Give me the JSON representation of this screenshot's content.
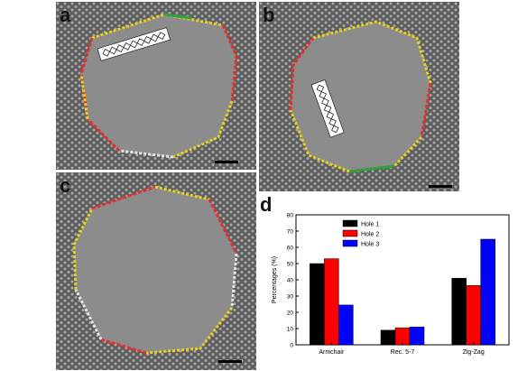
{
  "figure": {
    "panels": [
      {
        "label": "a",
        "description_icon": "armchair-edge-molecule-icon"
      },
      {
        "label": "b",
        "description_icon": "armchair-edge-molecule-icon"
      },
      {
        "label": "c"
      },
      {
        "label": "d"
      }
    ],
    "edge_colors": {
      "armchair": "#e8d020",
      "reconstructed": "#e03030",
      "zigzag": "#30a040",
      "other": "#e6e6e6"
    },
    "lattice_color": "#8a8a8a",
    "hole_color": "#8c8c8c"
  },
  "chart_data": {
    "type": "bar",
    "categories": [
      "Armchair",
      "Rec. 5-7",
      "Zig-Zag"
    ],
    "series": [
      {
        "name": "Hole 1",
        "color": "#000000",
        "values": [
          50,
          9,
          41
        ]
      },
      {
        "name": "Hole 2",
        "color": "#ff0000",
        "values": [
          53,
          10.5,
          36.5
        ]
      },
      {
        "name": "Hole 3",
        "color": "#0000ff",
        "values": [
          24.5,
          11,
          65
        ]
      }
    ],
    "ylabel": "Percentages (%)",
    "xlabel": "",
    "ylim": [
      0,
      80
    ],
    "yticks": [
      "0",
      "10",
      "20",
      "30",
      "40",
      "50",
      "60",
      "70",
      "80"
    ],
    "legend_position": "top-center",
    "grid": false
  }
}
